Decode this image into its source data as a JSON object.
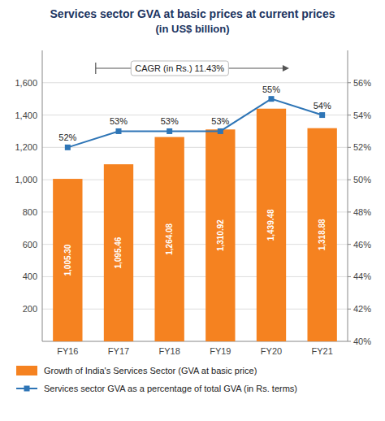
{
  "chart_data": {
    "type": "bar",
    "title": "Services sector GVA at basic prices at current prices",
    "subtitle": "(in US$ billion)",
    "categories": [
      "FY16",
      "FY17",
      "FY18",
      "FY19",
      "FY20",
      "FY21"
    ],
    "series": [
      {
        "name": "Growth of India's Services Sector (GVA at basic price)",
        "type": "bar",
        "color": "#f58220",
        "values": [
          1005.3,
          1095.46,
          1264.08,
          1310.92,
          1439.48,
          1318.88
        ],
        "value_labels": [
          "1,005.30",
          "1,095.46",
          "1,264.08",
          "1,310.92",
          "1,439.48",
          "1,318.88"
        ]
      },
      {
        "name": "Services sector GVA as a percentage of total GVA (in Rs. terms)",
        "type": "line",
        "color": "#2e75b6",
        "marker": "square",
        "axis": "y2",
        "values": [
          52,
          53,
          53,
          53,
          55,
          54
        ],
        "value_labels": [
          "52%",
          "53%",
          "53%",
          "53%",
          "55%",
          "54%"
        ]
      }
    ],
    "ylim": [
      0,
      1800
    ],
    "yticks": [
      200,
      400,
      600,
      800,
      {
        "value": 1000,
        "label": "1,000"
      },
      {
        "value": 1200,
        "label": "1,200"
      },
      {
        "value": 1400,
        "label": "1,400"
      },
      {
        "value": 1600,
        "label": "1,600"
      }
    ],
    "y2lim": [
      40,
      58
    ],
    "y2ticks": [
      {
        "value": 40,
        "label": "40%"
      },
      {
        "value": 42,
        "label": "42%"
      },
      {
        "value": 44,
        "label": "44%"
      },
      {
        "value": 46,
        "label": "46%"
      },
      {
        "value": 48,
        "label": "48%"
      },
      {
        "value": 50,
        "label": "50%"
      },
      {
        "value": 52,
        "label": "52%"
      },
      {
        "value": 54,
        "label": "54%"
      },
      {
        "value": 56,
        "label": "56%"
      }
    ],
    "grid": true,
    "data_labels": true,
    "legend": "bottom",
    "annotation": "CAGR (in Rs.) 11.43%"
  }
}
